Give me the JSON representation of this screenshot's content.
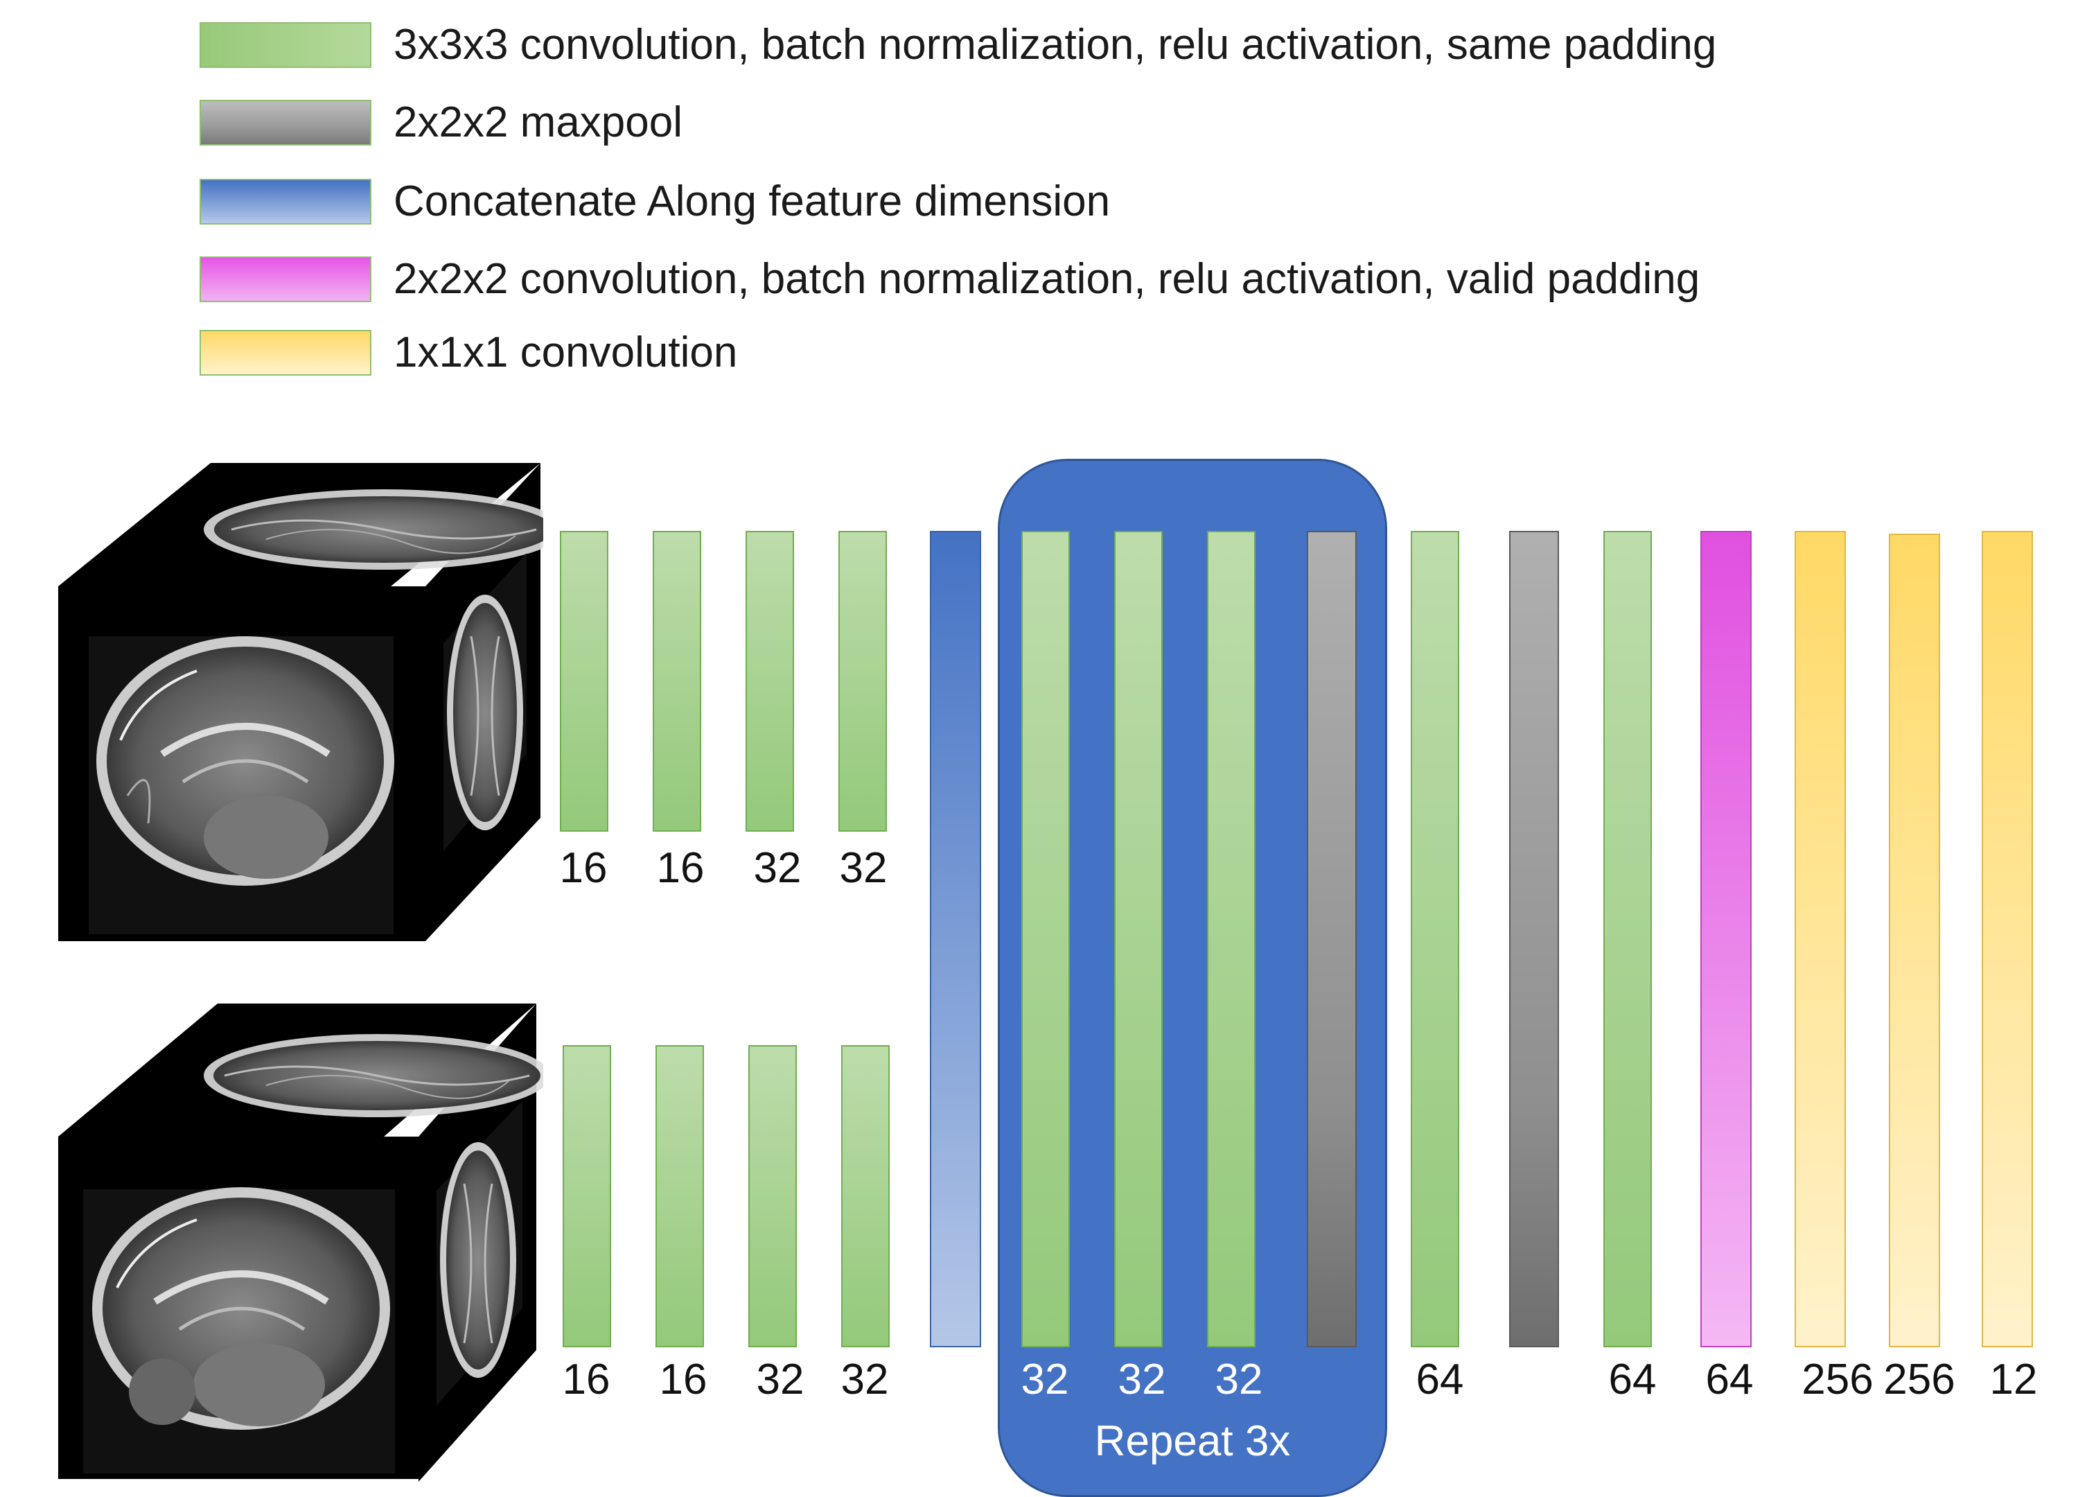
{
  "legend": [
    {
      "style": "green",
      "text": "3x3x3 convolution, batch normalization, relu activation, same padding"
    },
    {
      "style": "gray",
      "text": "2x2x2 maxpool"
    },
    {
      "style": "blue",
      "text": "Concatenate Along feature dimension"
    },
    {
      "style": "pink",
      "text": "2x2x2 convolution, batch normalization, relu activation, valid padding"
    },
    {
      "style": "yellow",
      "text": "1x1x1 convolution"
    }
  ],
  "top_branch_labels": [
    "16",
    "16",
    "32",
    "32"
  ],
  "bottom_branch_labels": [
    "16",
    "16",
    "32",
    "32"
  ],
  "repeat_labels": [
    "32",
    "32",
    "32"
  ],
  "repeat_text": "Repeat 3x",
  "tail_labels": [
    "64",
    "64",
    "64",
    "256",
    "256",
    "12"
  ],
  "colors": {
    "conv3": "#a9d18e",
    "maxpool": "#a6a6a6",
    "concat": "#4472c4",
    "conv2": "#e655e6",
    "conv1": "#ffd966"
  }
}
